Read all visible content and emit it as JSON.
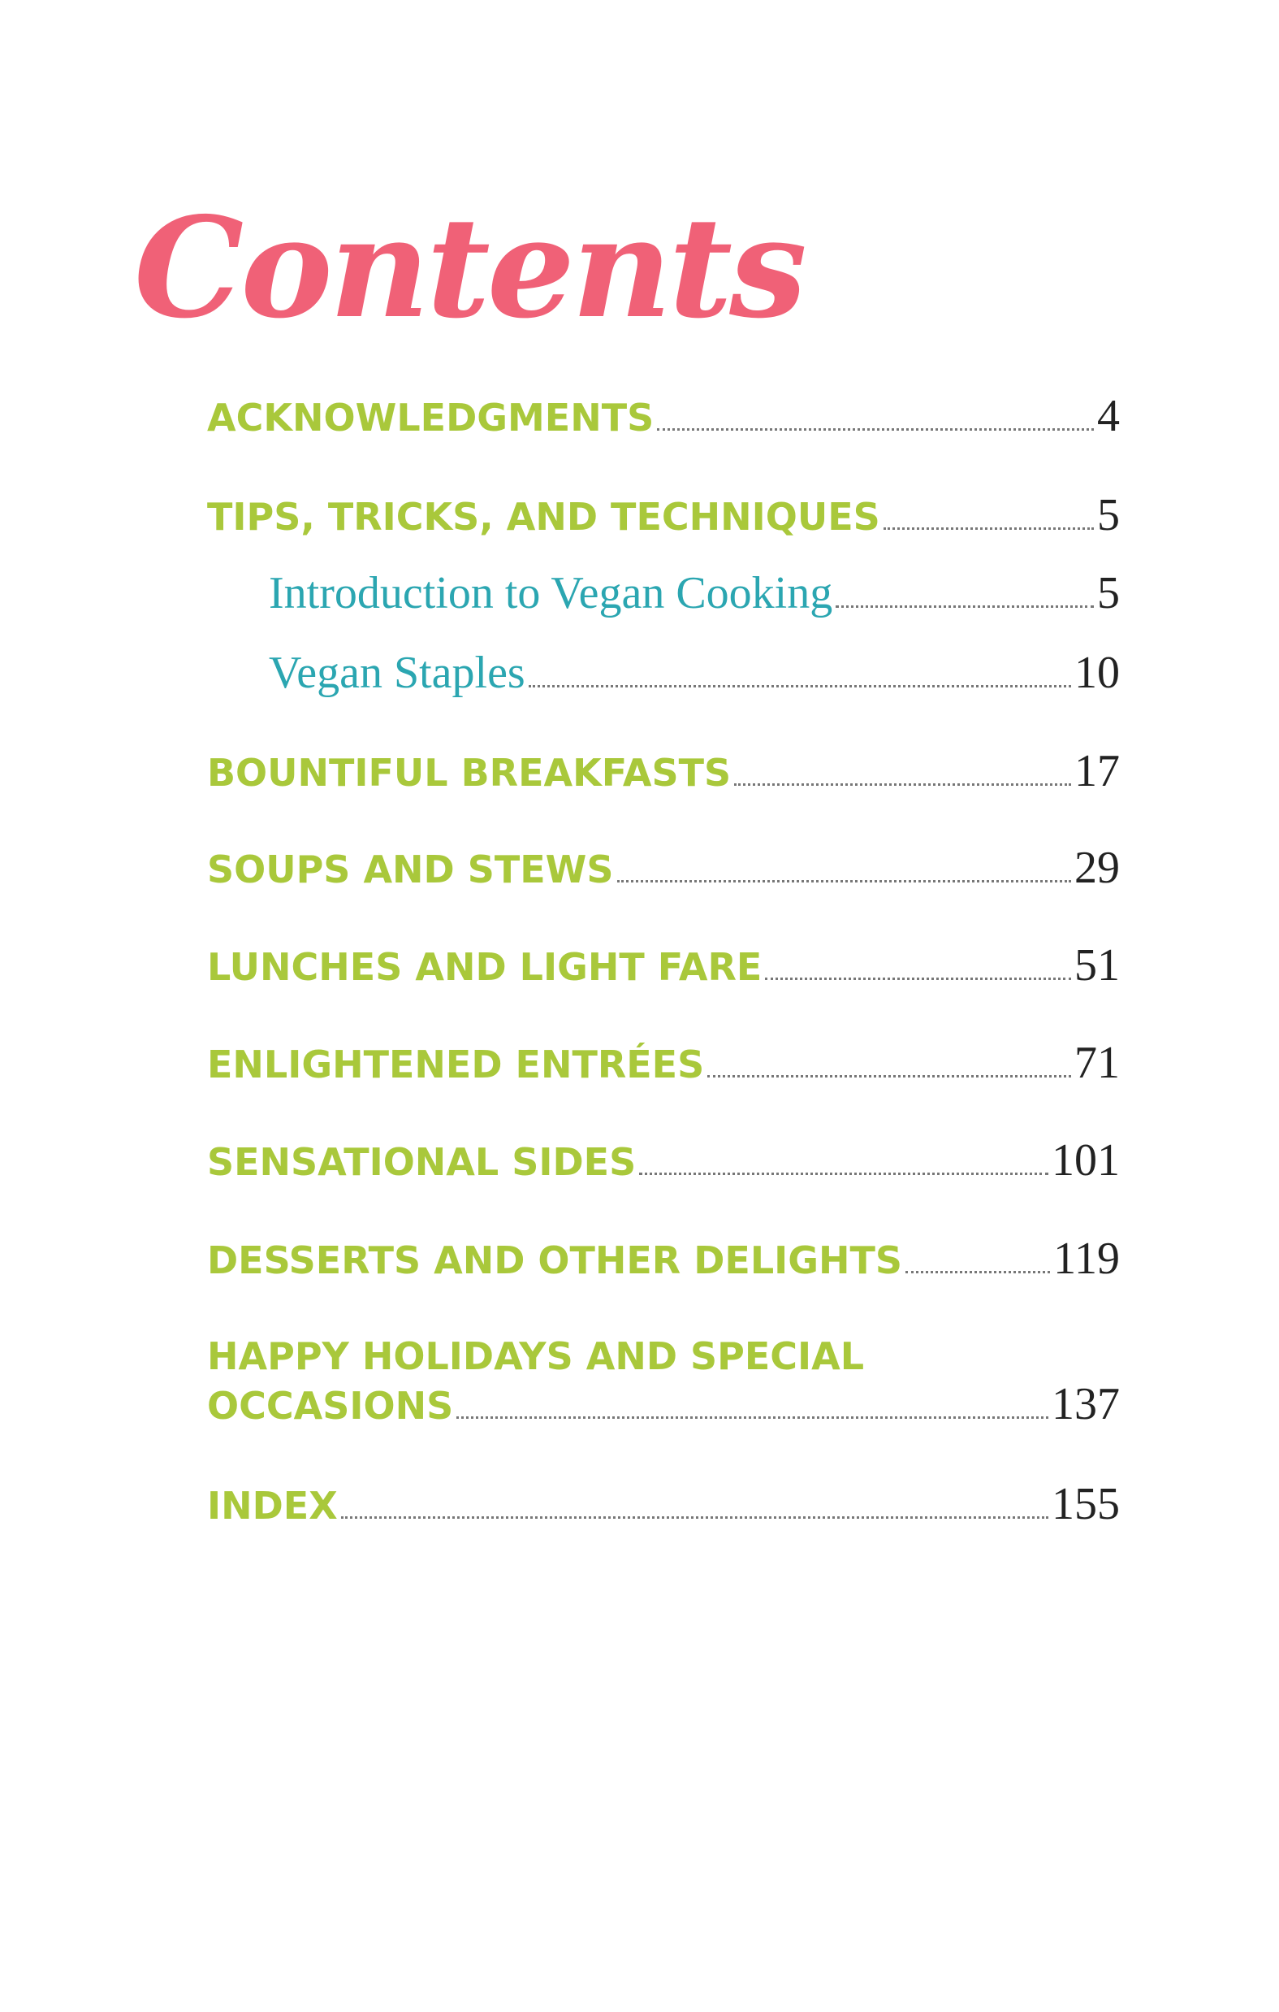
{
  "title": "Contents",
  "entries": [
    {
      "label": "ACKNOWLEDGMENTS",
      "page": "4"
    },
    {
      "label": "TIPS, TRICKS, AND TECHNIQUES",
      "page": "5"
    },
    {
      "label": "Introduction to Vegan Cooking",
      "page": "5"
    },
    {
      "label": "Vegan Staples",
      "page": "10"
    },
    {
      "label": "BOUNTIFUL BREAKFASTS",
      "page": "17"
    },
    {
      "label": "SOUPS AND STEWS",
      "page": "29"
    },
    {
      "label": "LUNCHES AND LIGHT FARE",
      "page": "51"
    },
    {
      "label": "ENLIGHTENED ENTRÉES",
      "page": "71"
    },
    {
      "label": "SENSATIONAL SIDES",
      "page": "101"
    },
    {
      "label": "DESSERTS AND OTHER DELIGHTS",
      "page": "119"
    },
    {
      "label_line1": "HAPPY HOLIDAYS AND SPECIAL",
      "label_line2": "OCCASIONS",
      "page": "137"
    },
    {
      "label": "INDEX",
      "page": "155"
    }
  ],
  "colors": {
    "title": "#f06177",
    "section": "#a9c83b",
    "subsection": "#2ba6b1",
    "page_number": "#222222"
  }
}
